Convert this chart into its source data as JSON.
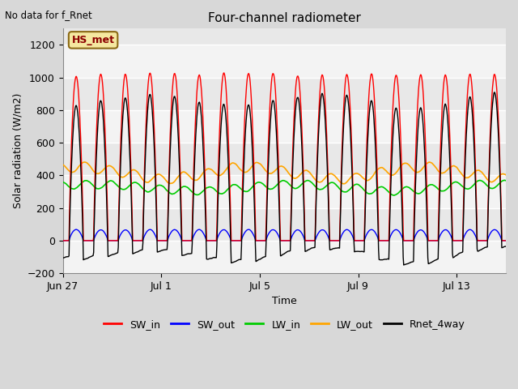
{
  "title": "Four-channel radiometer",
  "top_left_text": "No data for f_Rnet",
  "station_label": "HS_met",
  "xlabel": "Time",
  "ylabel": "Solar radiation (W/m2)",
  "ylim": [
    -200,
    1300
  ],
  "yticks": [
    -200,
    0,
    200,
    400,
    600,
    800,
    1000,
    1200
  ],
  "n_days": 18,
  "figure_bg_color": "#d8d8d8",
  "plot_bg_color": "#e8e8e8",
  "legend": [
    {
      "label": "SW_in",
      "color": "#ff0000"
    },
    {
      "label": "SW_out",
      "color": "#0000ff"
    },
    {
      "label": "LW_in",
      "color": "#00cc00"
    },
    {
      "label": "LW_out",
      "color": "#ffa500"
    },
    {
      "label": "Rnet_4way",
      "color": "#000000"
    }
  ],
  "x_tick_labels": [
    "Jun 27",
    "Jul 1",
    "Jul 5",
    "Jul 9",
    "Jul 13"
  ],
  "x_tick_days": [
    0,
    4,
    8,
    12,
    16
  ],
  "grid_color": "#cccccc",
  "grid_white_color": "#f0f0f0"
}
